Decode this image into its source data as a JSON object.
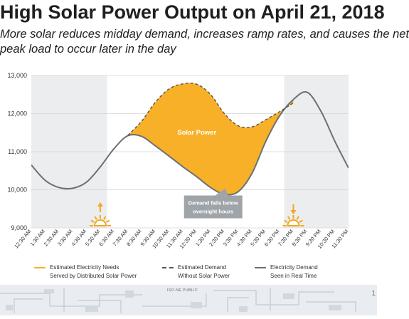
{
  "header": {
    "title": "High Solar Power Output on April 21, 2018",
    "subtitle_lines": [
      "More solar reduces midday demand, increases ramp rates, and causes the net",
      "peak load to occur later in the day"
    ]
  },
  "chart_data": {
    "type": "line",
    "title": "High Solar Power Output on April 21, 2018",
    "xlabel": "",
    "ylabel": "",
    "ylim": [
      9000,
      13000
    ],
    "yticks": [
      9000,
      10000,
      11000,
      12000,
      13000
    ],
    "ytick_labels": [
      "9,000",
      "10,000",
      "11,000",
      "12,000",
      "13,000"
    ],
    "categories": [
      "12:30 AM",
      "1:30 AM",
      "2:30 AM",
      "3:30 AM",
      "4:30 AM",
      "5:30 AM",
      "6:30 AM",
      "7:30 AM",
      "8:30 AM",
      "9:30 AM",
      "10:30 AM",
      "11:30 AM",
      "12:30 PM",
      "1:30 PM",
      "2:30 PM",
      "3:30 PM",
      "4:30 PM",
      "5:30 PM",
      "6:30 PM",
      "7:30 PM",
      "8:30 PM",
      "9:30 PM",
      "10:30 PM",
      "11:30 PM"
    ],
    "series": [
      {
        "name": "Electricity Demand Seen in Real Time",
        "color": "#6b7173",
        "style": "solid",
        "values": [
          10650,
          10250,
          10060,
          10040,
          10200,
          10600,
          11080,
          11420,
          11400,
          11150,
          10880,
          10600,
          10340,
          10060,
          9880,
          9950,
          10430,
          11270,
          11940,
          12370,
          12560,
          12060,
          11280,
          10570
        ]
      },
      {
        "name": "Estimated Demand Without Solar Power",
        "color": "#555555",
        "style": "dashed",
        "values": [
          null,
          null,
          null,
          null,
          null,
          null,
          null,
          11430,
          11800,
          12300,
          12650,
          12780,
          12770,
          12500,
          12000,
          11680,
          11650,
          11840,
          12050,
          12280,
          null,
          null,
          null,
          null
        ]
      }
    ],
    "fill": {
      "name": "Estimated Electricity Needs Served by Distributed Solar Power",
      "color": "#f7b027",
      "between": [
        "Electricity Demand Seen in Real Time",
        "Estimated Demand Without Solar Power"
      ]
    },
    "shaded_periods": [
      {
        "from": "12:30 AM",
        "to": "6:00 AM"
      },
      {
        "from": "6:50 PM",
        "to": "11:30 PM"
      }
    ],
    "annotations": [
      {
        "text": "Solar Power",
        "x": "12:30 PM",
        "y": 11450
      },
      {
        "text_lines": [
          "Demand falls below",
          "overnight hours"
        ],
        "x": "12:30 PM",
        "y": 9700
      }
    ],
    "markers": [
      {
        "icon": "sunrise-icon",
        "x": "5:30 AM"
      },
      {
        "icon": "sunset-icon",
        "x": "7:30 PM"
      }
    ],
    "grid": "horizontal"
  },
  "legend": {
    "solar": [
      "Estimated Electricity Needs",
      "Served by Distributed Solar Power"
    ],
    "estimated": [
      "Estimated Demand",
      "Without Solar Power"
    ],
    "realtime": [
      "Electricity Demand",
      "Seen in Real Time"
    ]
  },
  "footer": {
    "label": "ISO-NE PUBLIC",
    "page_number": "1"
  }
}
